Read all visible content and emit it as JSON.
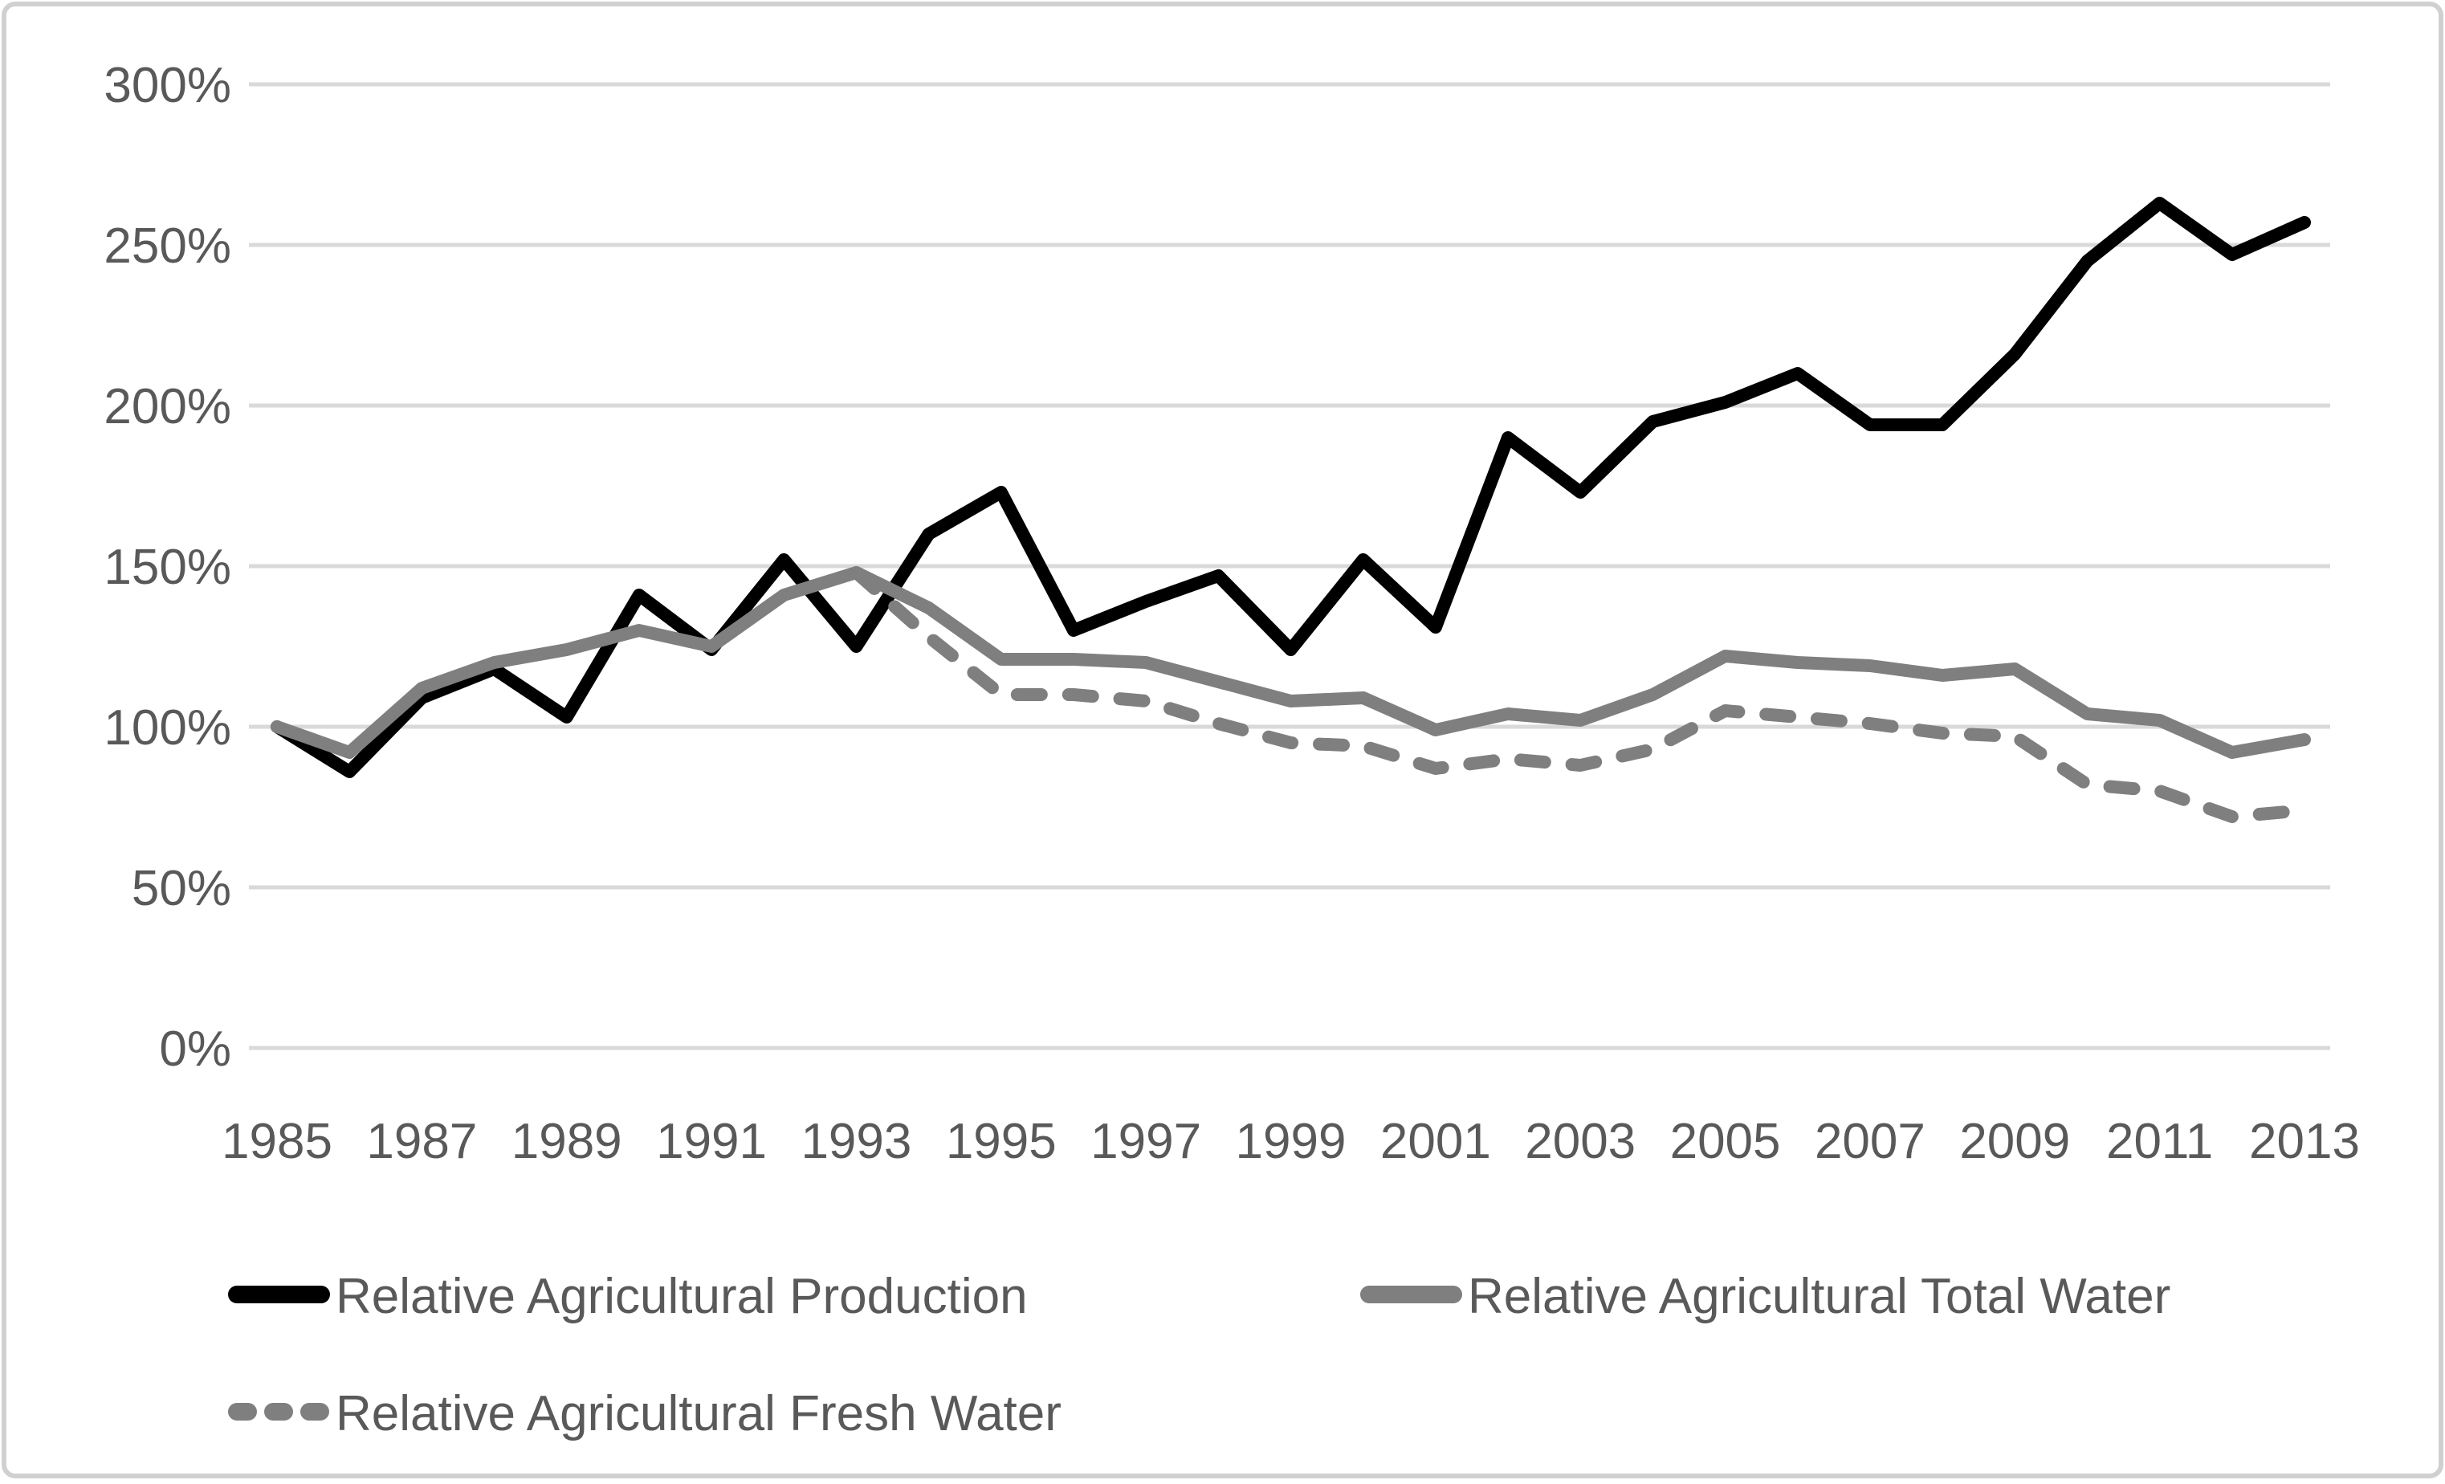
{
  "chart_data": {
    "type": "line",
    "title": "",
    "x": [
      1985,
      1986,
      1987,
      1988,
      1989,
      1990,
      1991,
      1992,
      1993,
      1994,
      1995,
      1996,
      1997,
      1998,
      1999,
      2000,
      2001,
      2002,
      2003,
      2004,
      2005,
      2006,
      2007,
      2008,
      2009,
      2010,
      2011,
      2012,
      2013
    ],
    "x_tick_labels": [
      "1985",
      "1987",
      "1989",
      "1991",
      "1993",
      "1995",
      "1997",
      "1999",
      "2001",
      "2003",
      "2005",
      "2007",
      "2009",
      "2011",
      "2013"
    ],
    "y_tick_labels": [
      "0%",
      "50%",
      "100%",
      "150%",
      "200%",
      "250%",
      "300%"
    ],
    "y_tick_values": [
      0,
      50,
      100,
      150,
      200,
      250,
      300
    ],
    "ylim": [
      0,
      300
    ],
    "y_unit": "%",
    "grid": "horizontal-only",
    "legend_position": "bottom-left",
    "series": [
      {
        "name": "Relative Agricultural Production",
        "color": "#000000",
        "style": "solid",
        "values": [
          100,
          86,
          109,
          118,
          103,
          141,
          124,
          152,
          125,
          160,
          173,
          130,
          139,
          147,
          124,
          152,
          131,
          190,
          173,
          195,
          201,
          210,
          194,
          194,
          216,
          245,
          263,
          247,
          257
        ]
      },
      {
        "name": "Relative Agricultural Total Water",
        "color": "#7f7f7f",
        "style": "solid",
        "values": [
          100,
          92,
          112,
          120,
          124,
          130,
          125,
          141,
          148,
          137,
          121,
          121,
          120,
          114,
          108,
          109,
          99,
          104,
          102,
          110,
          122,
          120,
          119,
          116,
          118,
          104,
          102,
          92,
          96
        ]
      },
      {
        "name": "Relative Agricultural Fresh Water",
        "color": "#7f7f7f",
        "style": "dashed",
        "values": [
          null,
          null,
          null,
          null,
          null,
          null,
          null,
          null,
          148,
          128,
          110,
          110,
          108,
          101,
          95,
          94,
          87,
          90,
          88,
          93,
          105,
          103,
          101,
          98,
          97,
          82,
          80,
          72,
          74
        ]
      }
    ]
  },
  "colors": {
    "background": "#ffffff",
    "frame_border": "#d0d0d0",
    "gridline": "#d9d9d9",
    "tick_text": "#595959",
    "series_black": "#000000",
    "series_gray": "#7f7f7f"
  }
}
